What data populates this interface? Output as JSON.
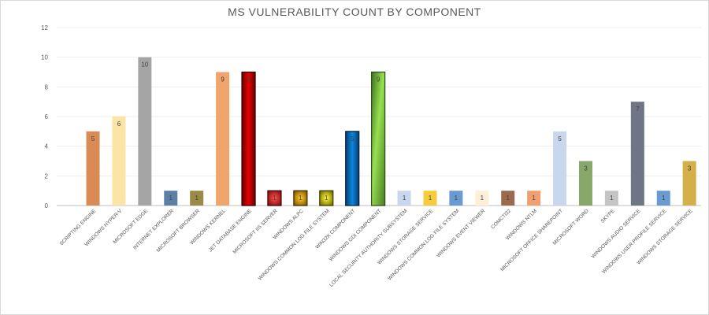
{
  "chart_data": {
    "type": "bar",
    "title": "MS VULNERABILITY COUNT BY COMPONENT",
    "xlabel": "",
    "ylabel": "",
    "ylim": [
      0,
      12
    ],
    "yticks": [
      0,
      2,
      4,
      6,
      8,
      10,
      12
    ],
    "grid": true,
    "legend": "none",
    "categories": [
      "SCRIPTING ENGINE",
      "WINDOWS HYPER-V",
      "MICROSOFT EDGE",
      "INTERNET EXPLORER",
      "MICROSOFT BROWSER",
      "WINDOWS KERNEL",
      "JET DATABASE ENGINE",
      "MICROSOFT IIS SERVER",
      "WINDOWS ALPC",
      "WINDOWS COMMON LOG FILE SYSTEM",
      "WIN32K COMPONENT",
      "WINDOWS GDI COMPONENT",
      "LOCAL SECURITY AUTHORITY SUBSYSTEM",
      "WINDOWS STORAGE SERVICE",
      "WINDOWS COMMON LOG FILE SYSTEM",
      "WINDOWS EVENT VIEWER",
      "COMCTl32",
      "WINDOWS NTLM",
      "MICROSOFT OFFICE SHAREPOINT",
      "MICROSOFT  WORD",
      "SKYPE",
      "WINDOWS AUDIO SERVICE",
      "WINDOWS USER PROFILE SERVICE",
      "WINDOWS STORAGE SERVICE"
    ],
    "values": [
      5,
      6,
      10,
      1,
      1,
      9,
      9,
      1,
      1,
      1,
      5,
      9,
      1,
      1,
      1,
      1,
      1,
      1,
      5,
      3,
      1,
      7,
      1,
      3
    ],
    "colors": [
      "#d98b56",
      "#fbe5a6",
      "#a5a5a5",
      "#5b7fa6",
      "#9b8a45",
      "#f0a56c",
      "#a80000",
      "#c8242a",
      "#c08810",
      "#c8c000",
      "#0a5a9c",
      "#6aa62c",
      "#c8d7ee",
      "#f7cc3c",
      "#6a9bd0",
      "#fdf0d6",
      "#9c6a4c",
      "#f0a070",
      "#c8d7ee",
      "#86a86a",
      "#c4c4c4",
      "#6e7585",
      "#6a9bd0",
      "#d4b048"
    ]
  }
}
